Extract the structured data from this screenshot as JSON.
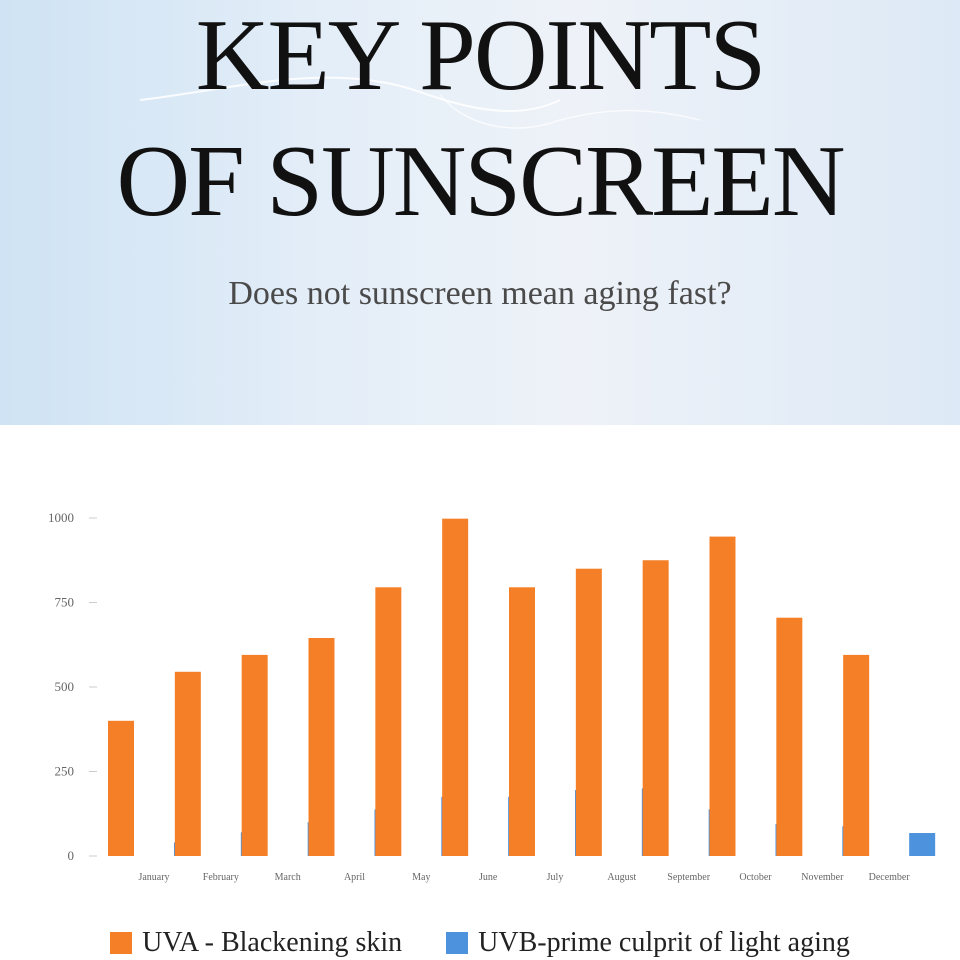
{
  "header": {
    "title_line1": "KEY POINTS",
    "title_line2": "OF SUNSCREEN",
    "subtitle": "Does not sunscreen mean aging fast?"
  },
  "colors": {
    "uva": "#f47f27",
    "uvb": "#4d92dc",
    "axis_text": "#666666",
    "axis_line": "#cccccc"
  },
  "chart_data": {
    "type": "bar",
    "title": "",
    "xlabel": "",
    "ylabel": "",
    "ylim": [
      0,
      1000
    ],
    "yticks": [
      0,
      250,
      500,
      750,
      1000
    ],
    "grid": false,
    "legend_position": "bottom",
    "categories": [
      "January",
      "February",
      "March",
      "April",
      "May",
      "June",
      "July",
      "August",
      "September",
      "October",
      "November",
      "December"
    ],
    "series": [
      {
        "name": "UVA - Blackening skin",
        "values": [
          400,
          545,
          595,
          645,
          795,
          998,
          795,
          850,
          875,
          945,
          705,
          595
        ]
      },
      {
        "name": "UVB-prime culprit of light aging",
        "values": [
          40,
          70,
          100,
          138,
          175,
          175,
          195,
          200,
          138,
          95,
          88,
          68
        ]
      }
    ]
  }
}
